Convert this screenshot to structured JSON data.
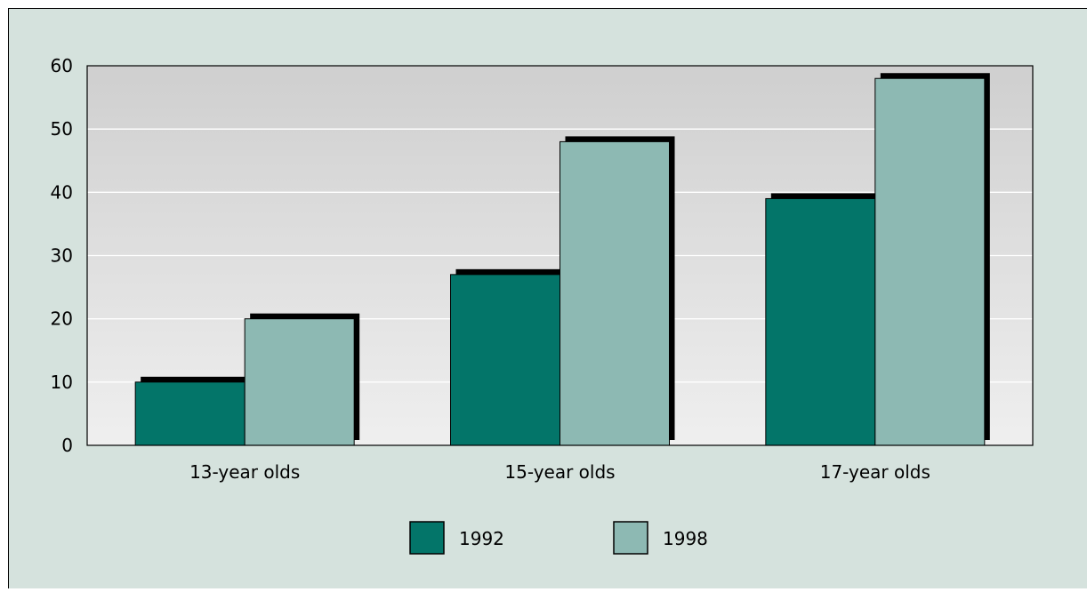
{
  "colors": {
    "background": "#d5e2dd",
    "plot_gradient_top": "#cfcfcf",
    "plot_gradient_bottom": "#efefef",
    "gridline": "#ffffff",
    "shadow": "#000000",
    "axis": "#000000"
  },
  "chart_data": {
    "type": "bar",
    "title": "",
    "xlabel": "",
    "ylabel": "",
    "categories": [
      "13-year olds",
      "15-year olds",
      "17-year olds"
    ],
    "series": [
      {
        "name": "1992",
        "values": [
          10,
          27,
          39
        ],
        "color": "#037569"
      },
      {
        "name": "1998",
        "values": [
          20,
          48,
          58
        ],
        "color": "#8db9b3"
      }
    ],
    "ylim": [
      0,
      60
    ],
    "yticks": [
      "0",
      "10",
      "20",
      "30",
      "40",
      "50",
      "60"
    ],
    "grid": true,
    "legend_position": "bottom-center"
  }
}
